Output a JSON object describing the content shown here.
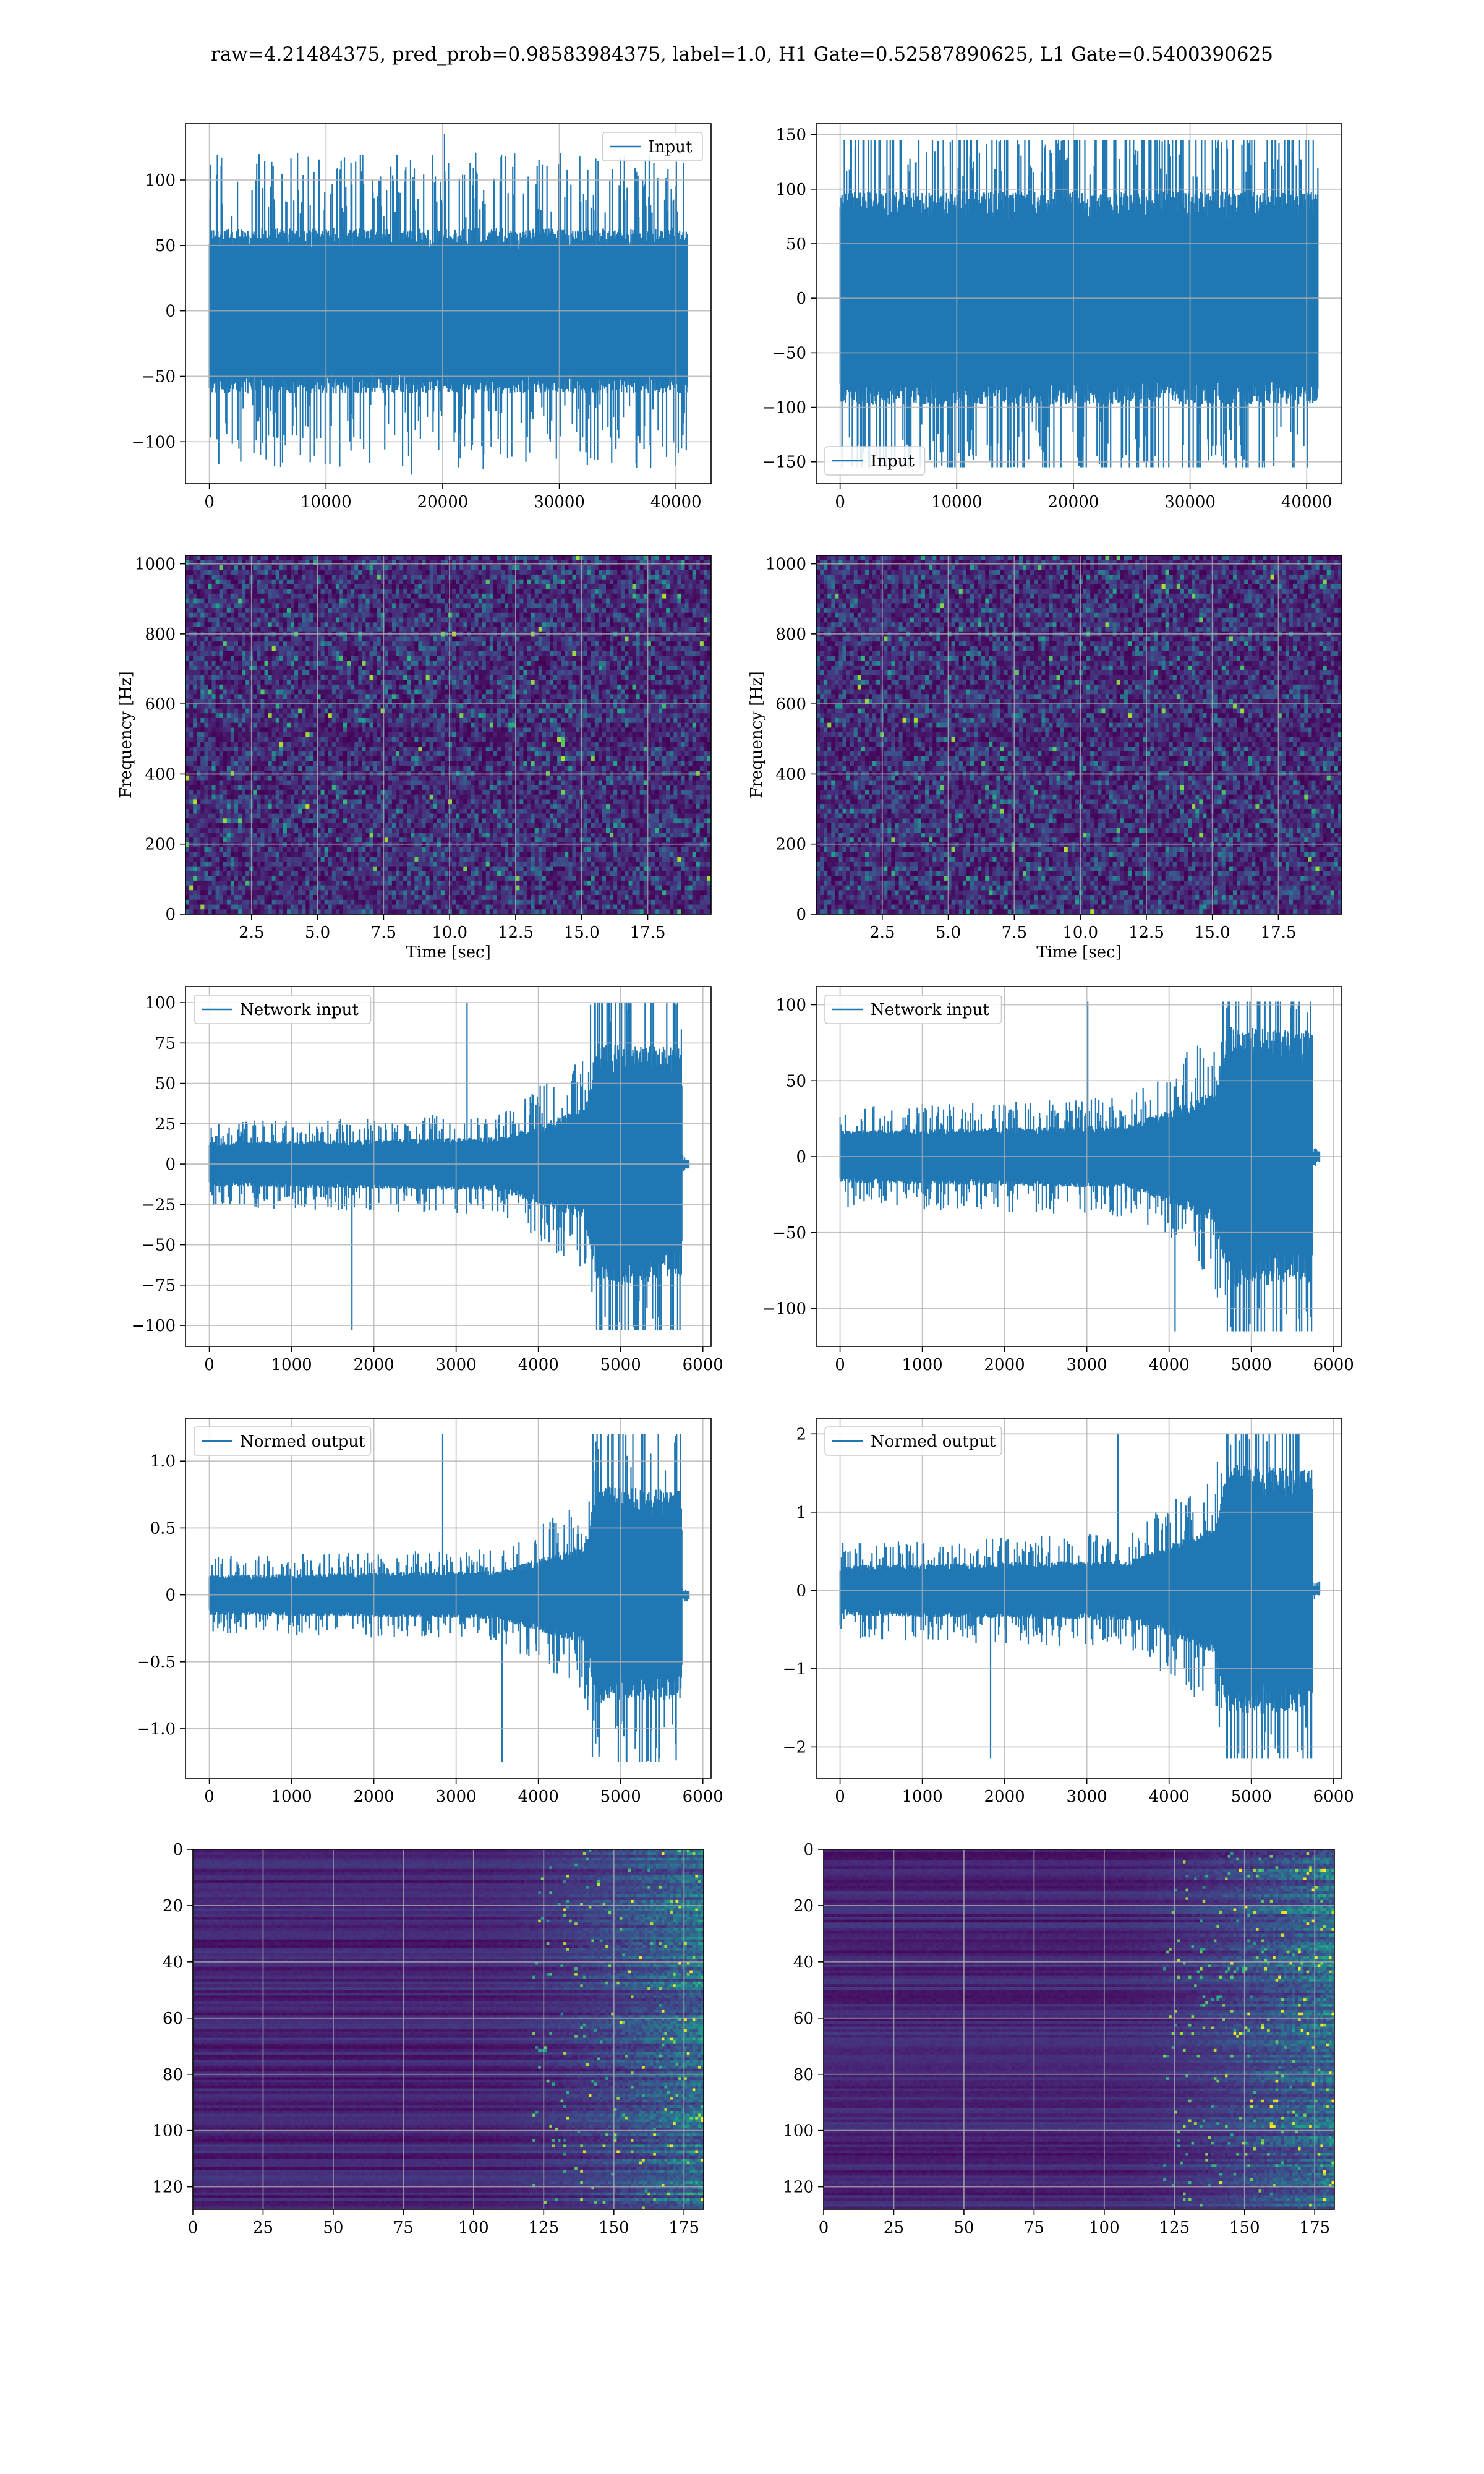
{
  "figure": {
    "title": "raw=4.21484375, pred_prob=0.98583984375, label=1.0, H1 Gate=0.52587890625, L1 Gate=0.5400390625"
  },
  "colors": {
    "line": "#1f77b4",
    "grid": "#b0b0b0",
    "viridis": [
      "#440154",
      "#482878",
      "#3e4a89",
      "#31688e",
      "#26828e",
      "#1f9e89",
      "#35b779",
      "#6ece58",
      "#b5de2b",
      "#fde725"
    ]
  },
  "chart_data": [
    {
      "id": "h1-input",
      "type": "line",
      "series": [
        {
          "name": "Input"
        }
      ],
      "legend": "upper right",
      "xlim": [
        -2048,
        43008
      ],
      "ylim": [
        -132,
        143
      ],
      "xticks": [
        0,
        10000,
        20000,
        30000,
        40000
      ],
      "yticks": [
        -100,
        -50,
        0,
        50,
        100
      ],
      "signal": {
        "n": 40960,
        "core": 55,
        "peak": 135,
        "min": -125,
        "envelope": [
          [
            0,
            1.0
          ],
          [
            1.0,
            1.0
          ]
        ]
      },
      "grid": true
    },
    {
      "id": "l1-input",
      "type": "line",
      "series": [
        {
          "name": "Input"
        }
      ],
      "legend": "lower left",
      "xlim": [
        -2048,
        43008
      ],
      "ylim": [
        -170,
        160
      ],
      "xticks": [
        0,
        10000,
        20000,
        30000,
        40000
      ],
      "yticks": [
        -150,
        -100,
        -50,
        0,
        50,
        100,
        150
      ],
      "signal": {
        "n": 40960,
        "core": 85,
        "peak": 145,
        "min": -155,
        "envelope": [
          [
            0,
            1.0
          ],
          [
            1.0,
            1.0
          ]
        ]
      },
      "grid": true
    },
    {
      "id": "h1-spectrogram",
      "type": "heatmap",
      "xlabel": "Time [sec]",
      "ylabel": "Frequency [Hz]",
      "xlim": [
        0,
        19.9
      ],
      "ylim": [
        0,
        1024
      ],
      "xticks": [
        2.5,
        5.0,
        7.5,
        10.0,
        12.5,
        15.0,
        17.5
      ],
      "yticks": [
        0,
        200,
        400,
        600,
        800,
        1000
      ],
      "yinvert": false,
      "kind": "noise",
      "grid": true
    },
    {
      "id": "l1-spectrogram",
      "type": "heatmap",
      "xlabel": "Time [sec]",
      "ylabel": "Frequency [Hz]",
      "xlim": [
        0,
        19.9
      ],
      "ylim": [
        0,
        1024
      ],
      "xticks": [
        2.5,
        5.0,
        7.5,
        10.0,
        12.5,
        15.0,
        17.5
      ],
      "yticks": [
        0,
        200,
        400,
        600,
        800,
        1000
      ],
      "yinvert": false,
      "kind": "noise",
      "grid": true
    },
    {
      "id": "h1-network-input",
      "type": "line",
      "series": [
        {
          "name": "Network input"
        }
      ],
      "legend": "upper left",
      "xlim": [
        -290,
        6100
      ],
      "ylim": [
        -113,
        110
      ],
      "xticks": [
        0,
        1000,
        2000,
        3000,
        4000,
        5000,
        6000
      ],
      "yticks": [
        -100,
        -75,
        -50,
        -25,
        0,
        25,
        50,
        75,
        100
      ],
      "signal": {
        "n": 5830,
        "core": 12,
        "peak": 100,
        "min": -103,
        "envelope": [
          [
            0,
            1.0
          ],
          [
            0.6,
            1.2
          ],
          [
            0.78,
            2.5
          ],
          [
            0.81,
            5.5
          ],
          [
            0.985,
            5.2
          ],
          [
            0.986,
            0.2
          ],
          [
            1.0,
            0.2
          ]
        ]
      },
      "grid": true
    },
    {
      "id": "l1-network-input",
      "type": "line",
      "series": [
        {
          "name": "Network input"
        }
      ],
      "legend": "upper left",
      "xlim": [
        -290,
        6100
      ],
      "ylim": [
        -125,
        112
      ],
      "xticks": [
        0,
        1000,
        2000,
        3000,
        4000,
        5000,
        6000
      ],
      "yticks": [
        -100,
        -50,
        0,
        50,
        100
      ],
      "signal": {
        "n": 5830,
        "core": 15,
        "peak": 102,
        "min": -115,
        "envelope": [
          [
            0,
            1.0
          ],
          [
            0.6,
            1.2
          ],
          [
            0.78,
            2.5
          ],
          [
            0.81,
            5.0
          ],
          [
            0.985,
            4.8
          ],
          [
            0.986,
            0.2
          ],
          [
            1.0,
            0.2
          ]
        ]
      },
      "grid": true
    },
    {
      "id": "h1-normed-output",
      "type": "line",
      "series": [
        {
          "name": "Normed output"
        }
      ],
      "legend": "upper left",
      "xlim": [
        -290,
        6100
      ],
      "ylim": [
        -1.37,
        1.32
      ],
      "xticks": [
        0,
        1000,
        2000,
        3000,
        4000,
        5000,
        6000
      ],
      "yticks": [
        -1.0,
        -0.5,
        0.0,
        0.5,
        1.0
      ],
      "signal": {
        "n": 5830,
        "core": 0.13,
        "peak": 1.2,
        "min": -1.25,
        "envelope": [
          [
            0,
            1.0
          ],
          [
            0.6,
            1.2
          ],
          [
            0.78,
            2.5
          ],
          [
            0.81,
            5.5
          ],
          [
            0.985,
            5.2
          ],
          [
            0.986,
            0.2
          ],
          [
            1.0,
            0.2
          ]
        ]
      },
      "grid": true
    },
    {
      "id": "l1-normed-output",
      "type": "line",
      "series": [
        {
          "name": "Normed output"
        }
      ],
      "legend": "upper left",
      "xlim": [
        -290,
        6100
      ],
      "ylim": [
        -2.4,
        2.2
      ],
      "xticks": [
        0,
        1000,
        2000,
        3000,
        4000,
        5000,
        6000
      ],
      "yticks": [
        -2,
        -1,
        0,
        1,
        2
      ],
      "signal": {
        "n": 5830,
        "core": 0.28,
        "peak": 2.0,
        "min": -2.15,
        "envelope": [
          [
            0,
            1.0
          ],
          [
            0.6,
            1.2
          ],
          [
            0.78,
            2.5
          ],
          [
            0.81,
            5.0
          ],
          [
            0.985,
            4.8
          ],
          [
            0.986,
            0.2
          ],
          [
            1.0,
            0.2
          ]
        ]
      },
      "grid": true
    },
    {
      "id": "h1-feature-map",
      "type": "heatmap",
      "xlim": [
        0,
        182
      ],
      "ylim": [
        0,
        128
      ],
      "xticks": [
        0,
        25,
        50,
        75,
        100,
        125,
        150,
        175
      ],
      "yticks": [
        0,
        20,
        40,
        60,
        80,
        100,
        120
      ],
      "yinvert": true,
      "kind": "feature",
      "grid": true
    },
    {
      "id": "l1-feature-map",
      "type": "heatmap",
      "xlim": [
        0,
        182
      ],
      "ylim": [
        0,
        128
      ],
      "xticks": [
        0,
        25,
        50,
        75,
        100,
        125,
        150,
        175
      ],
      "yticks": [
        0,
        20,
        40,
        60,
        80,
        100,
        120
      ],
      "yinvert": true,
      "kind": "feature",
      "grid": true
    }
  ]
}
